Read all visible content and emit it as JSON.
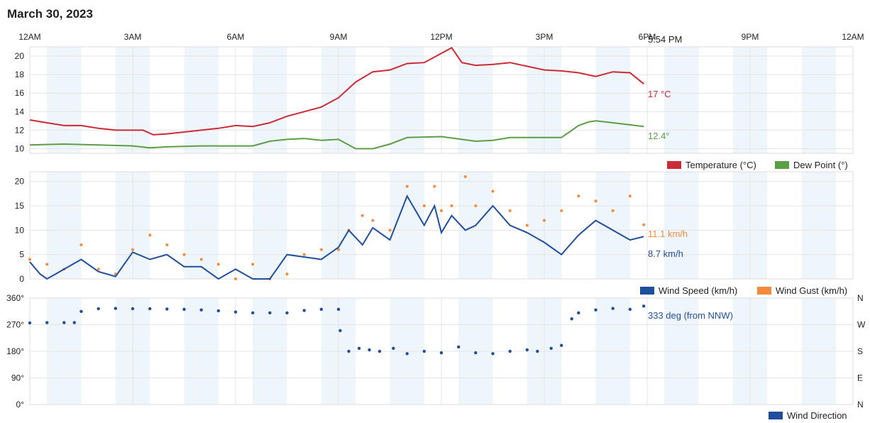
{
  "page_title": "March 30, 2023",
  "colors": {
    "temperature": "#cc2a36",
    "dew_point": "#5a9e47",
    "wind_speed": "#1f4e9e",
    "wind_gust": "#f58a3c",
    "band": "#eef5fb",
    "grid": "#e4e4e4"
  },
  "chart_data": [
    {
      "type": "line",
      "x_ticks": [
        "12AM",
        "3AM",
        "6AM",
        "9AM",
        "12PM",
        "3PM",
        "6PM",
        "9PM",
        "12AM"
      ],
      "x_unit": "hours",
      "current_time_label": "5:54 PM",
      "current_time_hours": 17.9,
      "y_ticks": [
        "20",
        "18",
        "16",
        "14",
        "12",
        "10"
      ],
      "ylim": [
        9.5,
        21
      ],
      "series": [
        {
          "name": "Temperature (°C)",
          "end_label": "17 °C",
          "x": [
            0,
            0.5,
            1,
            1.5,
            2,
            2.5,
            3,
            3.3,
            3.6,
            4,
            4.5,
            5,
            5.5,
            6,
            6.5,
            7,
            7.5,
            8,
            8.5,
            9,
            9.5,
            10,
            10.5,
            11,
            11.5,
            12,
            12.3,
            12.6,
            13,
            13.5,
            14,
            14.5,
            15,
            15.5,
            16,
            16.5,
            17,
            17.5,
            17.9
          ],
          "values": [
            13.1,
            12.8,
            12.5,
            12.5,
            12.2,
            12.0,
            12.0,
            12.0,
            11.5,
            11.6,
            11.8,
            12.0,
            12.2,
            12.5,
            12.4,
            12.8,
            13.5,
            14.0,
            14.5,
            15.5,
            17.2,
            18.3,
            18.5,
            19.2,
            19.3,
            20.3,
            20.9,
            19.3,
            19.0,
            19.1,
            19.3,
            18.9,
            18.5,
            18.4,
            18.2,
            17.8,
            18.3,
            18.2,
            17.0
          ]
        },
        {
          "name": "Dew Point (°)",
          "end_label": "12.4°",
          "x": [
            0,
            1,
            2,
            3,
            3.5,
            4,
            5,
            6,
            6.5,
            7,
            7.5,
            8,
            8.5,
            9,
            9.5,
            10,
            10.5,
            11,
            12,
            13,
            13.5,
            14,
            14.5,
            15,
            15.5,
            16,
            16.3,
            16.5,
            17,
            17.9
          ],
          "values": [
            10.4,
            10.5,
            10.4,
            10.3,
            10.1,
            10.2,
            10.3,
            10.3,
            10.3,
            10.8,
            11.0,
            11.1,
            10.9,
            11.0,
            10.0,
            10.0,
            10.5,
            11.2,
            11.3,
            10.8,
            10.9,
            11.2,
            11.2,
            11.2,
            11.2,
            12.5,
            12.9,
            13.0,
            12.8,
            12.4
          ]
        }
      ],
      "legend_position": "bottom-right"
    },
    {
      "type": "line",
      "x_ticks": [
        "12AM",
        "3AM",
        "6AM",
        "9AM",
        "12PM",
        "3PM",
        "6PM",
        "9PM",
        "12AM"
      ],
      "y_ticks": [
        "20",
        "15",
        "10",
        "5",
        "0"
      ],
      "ylim": [
        0,
        22
      ],
      "series": [
        {
          "name": "Wind Speed (km/h)",
          "end_label": "8.7 km/h",
          "x": [
            0,
            0.3,
            0.5,
            1,
            1.5,
            2,
            2.5,
            3,
            3.5,
            4,
            4.5,
            5,
            5.5,
            6,
            6.5,
            7,
            7.5,
            8,
            8.5,
            9,
            9.3,
            9.7,
            10,
            10.5,
            11,
            11.5,
            11.8,
            12,
            12.3,
            12.7,
            13,
            13.5,
            14,
            14.5,
            15,
            15.5,
            16,
            16.5,
            17,
            17.5,
            17.9
          ],
          "values": [
            3.5,
            1.0,
            0,
            2.0,
            4.0,
            1.5,
            0.5,
            5.5,
            4.0,
            5.0,
            2.5,
            2.5,
            0,
            2.0,
            0,
            0,
            5.0,
            4.5,
            4.0,
            6.5,
            10.0,
            7.0,
            10.5,
            8.0,
            17.0,
            11.0,
            15.0,
            9.5,
            13.0,
            10.0,
            11.0,
            15.0,
            11.0,
            9.5,
            7.5,
            5.0,
            9.0,
            12.0,
            10.0,
            8.0,
            8.7
          ]
        },
        {
          "name": "Wind Gust (km/h)",
          "end_label": "11.1 km/h",
          "x": [
            0,
            0.5,
            1,
            1.5,
            2,
            2.5,
            3,
            3.5,
            4,
            4.5,
            5,
            5.5,
            6,
            6.5,
            7,
            7.5,
            8,
            8.5,
            9,
            9.3,
            9.7,
            10,
            10.5,
            11,
            11.5,
            11.8,
            12,
            12.3,
            12.7,
            13,
            13.5,
            14,
            14.5,
            15,
            15.5,
            16,
            16.5,
            17,
            17.5,
            17.9
          ],
          "values": [
            4,
            3,
            2,
            7,
            2,
            1,
            6,
            9,
            7,
            5,
            4,
            3,
            0,
            3,
            0,
            1,
            5,
            6,
            6,
            10,
            13,
            12,
            10,
            19,
            15,
            19,
            14,
            15,
            21,
            15,
            18,
            14,
            11,
            12,
            14,
            17,
            16,
            14,
            17,
            11.1
          ]
        }
      ],
      "legend_position": "bottom-right"
    },
    {
      "type": "scatter",
      "x_ticks": [
        "12AM",
        "3AM",
        "6AM",
        "9AM",
        "12PM",
        "3PM",
        "6PM",
        "9PM",
        "12AM"
      ],
      "y_ticks": [
        "360°",
        "270°",
        "180°",
        "90°",
        "0°"
      ],
      "y_ticks_right": [
        "N",
        "W",
        "S",
        "E",
        "N"
      ],
      "ylim": [
        0,
        360
      ],
      "series": [
        {
          "name": "Wind Direction",
          "end_label": "333 deg (from NNW)",
          "x": [
            0,
            0.5,
            1,
            1.3,
            1.5,
            2,
            2.5,
            3,
            3.5,
            4,
            4.5,
            5,
            5.5,
            6,
            6.5,
            7,
            7.5,
            8,
            8.5,
            9,
            9.05,
            9.3,
            9.6,
            9.9,
            10.2,
            10.6,
            11,
            11.5,
            12,
            12.5,
            13,
            13.5,
            14,
            14.5,
            14.8,
            15.2,
            15.5,
            15.8,
            16,
            16.5,
            17,
            17.5,
            17.9
          ],
          "values": [
            276,
            277,
            277,
            277,
            315,
            324,
            325,
            324,
            324,
            323,
            322,
            320,
            317,
            313,
            310,
            310,
            310,
            318,
            322,
            322,
            250,
            180,
            190,
            185,
            180,
            190,
            172,
            180,
            175,
            195,
            175,
            172,
            180,
            185,
            180,
            190,
            200,
            290,
            310,
            320,
            325,
            322,
            333
          ]
        }
      ],
      "legend_position": "bottom-right"
    }
  ]
}
